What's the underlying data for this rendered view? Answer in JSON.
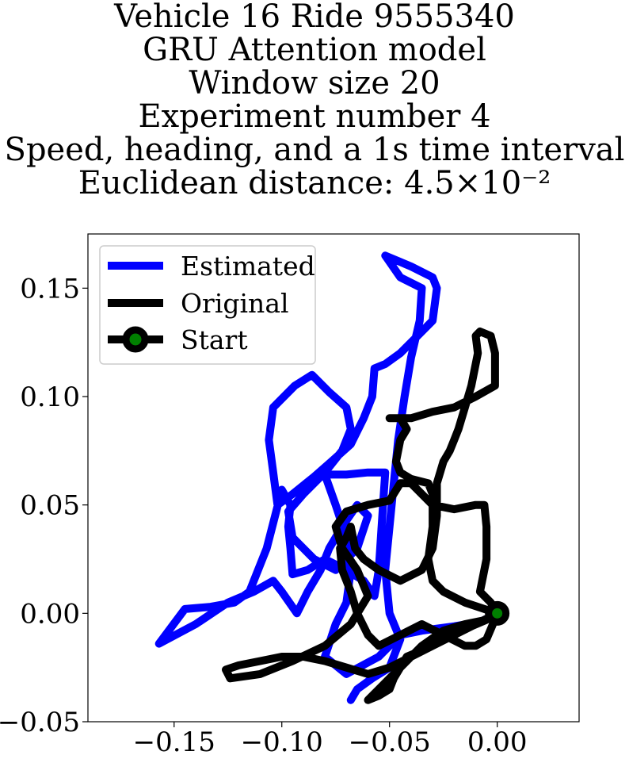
{
  "title_lines": [
    "Vehicle 16 Ride 9555340",
    "GRU Attention model",
    "Window size 20",
    "Experiment number 4",
    "Speed, heading, and a 1s time interval",
    "Euclidean distance: 4.5×10⁻²"
  ],
  "chart_data": {
    "type": "line",
    "title": "Vehicle 16 Ride 9555340 / GRU Attention model / Window size 20 / Experiment number 4 / Speed, heading, and a 1s time interval / Euclidean distance: 4.5×10⁻²",
    "xlabel": "",
    "ylabel": "",
    "xlim": [
      -0.19,
      0.038
    ],
    "ylim": [
      -0.05,
      0.175
    ],
    "xticks": [
      -0.15,
      -0.1,
      -0.05,
      0.0
    ],
    "xtick_labels": [
      "−0.15",
      "−0.10",
      "−0.05",
      "0.00"
    ],
    "yticks": [
      -0.05,
      0.0,
      0.05,
      0.1,
      0.15
    ],
    "ytick_labels": [
      "−0.05",
      "0.00",
      "0.05",
      "0.10",
      "0.15"
    ],
    "grid": false,
    "legend_position": "top-left",
    "series": [
      {
        "name": "Estimated",
        "color": "#0000ff",
        "points": [
          [
            0,
            0
          ],
          [
            -0.008,
            -0.004
          ],
          [
            -0.02,
            -0.006
          ],
          [
            -0.035,
            -0.008
          ],
          [
            -0.045,
            -0.01
          ],
          [
            -0.05,
            -0.015
          ],
          [
            -0.055,
            -0.02
          ],
          [
            -0.07,
            -0.028
          ],
          [
            -0.08,
            -0.02
          ],
          [
            -0.075,
            -0.005
          ],
          [
            -0.07,
            0.005
          ],
          [
            -0.068,
            0.02
          ],
          [
            -0.07,
            0.035
          ],
          [
            -0.075,
            0.05
          ],
          [
            -0.08,
            0.064
          ],
          [
            -0.07,
            0.064
          ],
          [
            -0.06,
            0.065
          ],
          [
            -0.052,
            0.065
          ],
          [
            -0.053,
            0.05
          ],
          [
            -0.054,
            0.035
          ],
          [
            -0.055,
            0.02
          ],
          [
            -0.057,
            0.008
          ],
          [
            -0.062,
            0.015
          ],
          [
            -0.07,
            0.02
          ],
          [
            -0.08,
            0.025
          ],
          [
            -0.088,
            0.02
          ],
          [
            -0.095,
            0.018
          ],
          [
            -0.096,
            0.03
          ],
          [
            -0.097,
            0.04
          ],
          [
            -0.096,
            0.05
          ],
          [
            -0.1,
            0.057
          ],
          [
            -0.107,
            0.03
          ],
          [
            -0.115,
            0.01
          ],
          [
            -0.122,
            0.005
          ],
          [
            -0.133,
            0.003
          ],
          [
            -0.145,
            0.002
          ],
          [
            -0.157,
            -0.014
          ],
          [
            -0.14,
            -0.005
          ],
          [
            -0.125,
            0.005
          ],
          [
            -0.113,
            0.01
          ],
          [
            -0.104,
            0.015
          ],
          [
            -0.1,
            0.01
          ],
          [
            -0.093,
            0.0
          ],
          [
            -0.088,
            0.01
          ],
          [
            -0.082,
            0.02
          ],
          [
            -0.078,
            0.03
          ],
          [
            -0.072,
            0.04
          ],
          [
            -0.065,
            0.05
          ],
          [
            -0.06,
            0.045
          ],
          [
            -0.065,
            0.03
          ],
          [
            -0.075,
            0.02
          ],
          [
            -0.085,
            0.025
          ],
          [
            -0.095,
            0.035
          ],
          [
            -0.097,
            0.047
          ],
          [
            -0.09,
            0.055
          ],
          [
            -0.08,
            0.065
          ],
          [
            -0.072,
            0.075
          ],
          [
            -0.068,
            0.085
          ],
          [
            -0.07,
            0.095
          ],
          [
            -0.078,
            0.102
          ],
          [
            -0.086,
            0.11
          ],
          [
            -0.094,
            0.105
          ],
          [
            -0.104,
            0.095
          ],
          [
            -0.106,
            0.08
          ],
          [
            -0.104,
            0.065
          ],
          [
            -0.102,
            0.05
          ],
          [
            -0.095,
            0.055
          ],
          [
            -0.085,
            0.063
          ],
          [
            -0.077,
            0.07
          ],
          [
            -0.068,
            0.078
          ],
          [
            -0.062,
            0.09
          ],
          [
            -0.058,
            0.1
          ],
          [
            -0.057,
            0.113
          ],
          [
            -0.052,
            0.115
          ],
          [
            -0.045,
            0.12
          ],
          [
            -0.037,
            0.128
          ],
          [
            -0.03,
            0.135
          ],
          [
            -0.028,
            0.15
          ],
          [
            -0.03,
            0.155
          ],
          [
            -0.04,
            0.16
          ],
          [
            -0.052,
            0.165
          ],
          [
            -0.045,
            0.155
          ],
          [
            -0.035,
            0.15
          ],
          [
            -0.036,
            0.135
          ],
          [
            -0.04,
            0.118
          ],
          [
            -0.043,
            0.1
          ],
          [
            -0.046,
            0.08
          ],
          [
            -0.048,
            0.06
          ],
          [
            -0.05,
            0.04
          ],
          [
            -0.052,
            0.02
          ],
          [
            -0.05,
            0.0
          ],
          [
            -0.045,
            -0.012
          ],
          [
            -0.05,
            -0.025
          ],
          [
            -0.058,
            -0.03
          ],
          [
            -0.065,
            -0.035
          ],
          [
            -0.068,
            -0.04
          ]
        ]
      },
      {
        "name": "Original",
        "color": "#000000",
        "points": [
          [
            0,
            0
          ],
          [
            -0.005,
            -0.003
          ],
          [
            -0.012,
            -0.006
          ],
          [
            -0.02,
            -0.01
          ],
          [
            -0.03,
            -0.015
          ],
          [
            -0.04,
            -0.02
          ],
          [
            -0.05,
            -0.025
          ],
          [
            -0.06,
            -0.028
          ],
          [
            -0.07,
            -0.025
          ],
          [
            -0.08,
            -0.022
          ],
          [
            -0.09,
            -0.02
          ],
          [
            -0.1,
            -0.02
          ],
          [
            -0.11,
            -0.022
          ],
          [
            -0.12,
            -0.024
          ],
          [
            -0.126,
            -0.026
          ],
          [
            -0.124,
            -0.03
          ],
          [
            -0.11,
            -0.028
          ],
          [
            -0.095,
            -0.022
          ],
          [
            -0.08,
            -0.015
          ],
          [
            -0.068,
            -0.005
          ],
          [
            -0.06,
            0.008
          ],
          [
            -0.065,
            0.02
          ],
          [
            -0.072,
            0.03
          ],
          [
            -0.075,
            0.04
          ],
          [
            -0.07,
            0.047
          ],
          [
            -0.06,
            0.05
          ],
          [
            -0.05,
            0.052
          ],
          [
            -0.045,
            0.06
          ],
          [
            -0.04,
            0.06
          ],
          [
            -0.03,
            0.05
          ],
          [
            -0.02,
            0.048
          ],
          [
            -0.01,
            0.05
          ],
          [
            -0.006,
            0.05
          ],
          [
            -0.005,
            0.04
          ],
          [
            -0.005,
            0.025
          ],
          [
            -0.008,
            0.01
          ],
          [
            -0.003,
            0.005
          ],
          [
            0.0,
            0.0
          ],
          [
            -0.01,
            -0.005
          ],
          [
            -0.02,
            -0.01
          ],
          [
            -0.03,
            -0.015
          ],
          [
            -0.042,
            -0.02
          ],
          [
            -0.048,
            -0.03
          ],
          [
            -0.05,
            -0.035
          ],
          [
            -0.055,
            -0.038
          ],
          [
            -0.06,
            -0.04
          ],
          [
            -0.055,
            -0.035
          ],
          [
            -0.045,
            -0.025
          ],
          [
            -0.035,
            -0.015
          ],
          [
            -0.025,
            -0.008
          ],
          [
            -0.015,
            -0.005
          ],
          [
            -0.005,
            -0.003
          ],
          [
            0.0,
            0.0
          ],
          [
            -0.015,
            0.005
          ],
          [
            -0.025,
            0.01
          ],
          [
            -0.03,
            0.015
          ],
          [
            -0.032,
            0.025
          ],
          [
            -0.03,
            0.04
          ],
          [
            -0.03,
            0.055
          ],
          [
            -0.032,
            0.06
          ],
          [
            -0.04,
            0.062
          ],
          [
            -0.045,
            0.065
          ],
          [
            -0.047,
            0.07
          ],
          [
            -0.045,
            0.08
          ],
          [
            -0.042,
            0.085
          ],
          [
            -0.045,
            0.09
          ],
          [
            -0.05,
            0.09
          ],
          [
            -0.04,
            0.09
          ],
          [
            -0.03,
            0.093
          ],
          [
            -0.02,
            0.095
          ],
          [
            -0.01,
            0.1
          ],
          [
            -0.001,
            0.105
          ],
          [
            -0.001,
            0.12
          ],
          [
            -0.003,
            0.128
          ],
          [
            -0.008,
            0.13
          ],
          [
            -0.01,
            0.128
          ],
          [
            -0.009,
            0.12
          ],
          [
            -0.012,
            0.105
          ],
          [
            -0.015,
            0.095
          ],
          [
            -0.018,
            0.085
          ],
          [
            -0.02,
            0.08
          ],
          [
            -0.022,
            0.075
          ],
          [
            -0.025,
            0.07
          ],
          [
            -0.028,
            0.06
          ],
          [
            -0.028,
            0.045
          ],
          [
            -0.03,
            0.03
          ],
          [
            -0.035,
            0.02
          ],
          [
            -0.045,
            0.015
          ],
          [
            -0.055,
            0.02
          ],
          [
            -0.062,
            0.025
          ],
          [
            -0.066,
            0.03
          ],
          [
            -0.068,
            0.04
          ],
          [
            -0.07,
            0.035
          ],
          [
            -0.073,
            0.03
          ],
          [
            -0.072,
            0.02
          ],
          [
            -0.068,
            0.01
          ],
          [
            -0.065,
            0.0
          ],
          [
            -0.06,
            -0.01
          ],
          [
            -0.055,
            -0.015
          ],
          [
            -0.045,
            -0.01
          ],
          [
            -0.035,
            -0.005
          ],
          [
            -0.025,
            -0.01
          ],
          [
            -0.015,
            -0.015
          ],
          [
            -0.01,
            -0.015
          ],
          [
            -0.005,
            -0.012
          ],
          [
            -0.002,
            -0.005
          ]
        ]
      },
      {
        "name": "Start",
        "color": "#000000",
        "marker_color": "#008000",
        "points": [
          [
            0.0,
            0.0
          ]
        ]
      }
    ]
  }
}
